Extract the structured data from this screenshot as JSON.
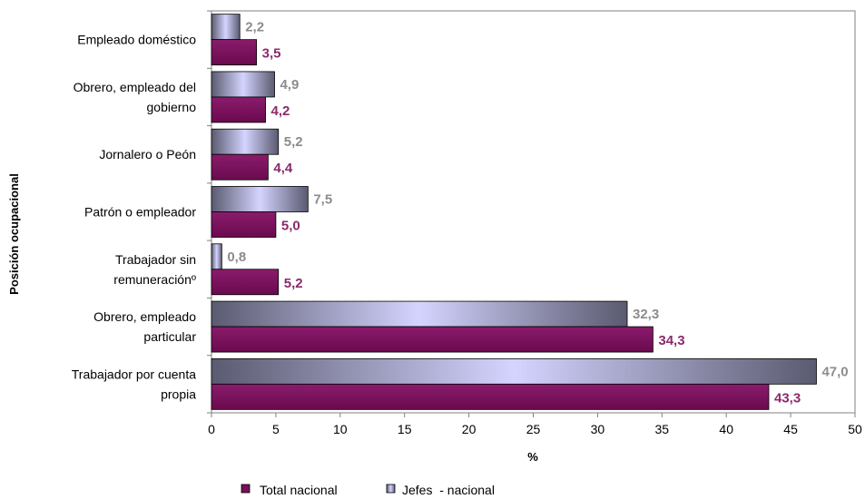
{
  "chart_data": {
    "type": "bar",
    "orientation": "horizontal",
    "categories": [
      [
        "Empleado doméstico"
      ],
      [
        "Obrero, empleado del",
        "gobierno"
      ],
      [
        "Jornalero o Peón"
      ],
      [
        "Patrón o empleador"
      ],
      [
        "Trabajador sin",
        "remuneraciónº"
      ],
      [
        "Obrero, empleado",
        "particular"
      ],
      [
        "Trabajador por cuenta",
        "propia"
      ]
    ],
    "series": [
      {
        "name": "Jefes  - nacional",
        "values": [
          2.2,
          4.9,
          5.2,
          7.5,
          0.8,
          32.3,
          47.0
        ],
        "labels": [
          "2,2",
          "4,9",
          "5,2",
          "7,5",
          "0,8",
          "32,3",
          "47,0"
        ],
        "label_color": "#8c8c8c"
      },
      {
        "name": "Total nacional",
        "values": [
          3.5,
          4.2,
          4.4,
          5.0,
          5.2,
          34.3,
          43.3
        ],
        "labels": [
          "3,5",
          "4,2",
          "4,4",
          "5,0",
          "5,2",
          "34,3",
          "43,3"
        ],
        "label_color": "#8b2a6b"
      }
    ],
    "xlabel": "%",
    "ylabel": "Posición ocupacional",
    "xlim": [
      0,
      50
    ],
    "xticks": [
      0,
      5,
      10,
      15,
      20,
      25,
      30,
      35,
      40,
      45,
      50
    ],
    "grid": false,
    "legend": {
      "position": "bottom",
      "items": [
        "Total nacional",
        "Jefes  - nacional"
      ]
    },
    "colors": {
      "total": "#7a0f5c",
      "jefes_light": "#d4d4ff",
      "jefes_dark": "#5a5a70"
    }
  }
}
